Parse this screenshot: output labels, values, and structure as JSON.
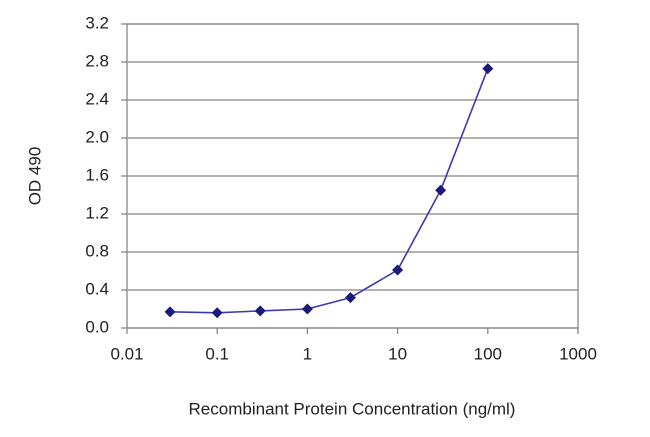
{
  "chart_data": {
    "type": "line",
    "xlabel": "Recombinant Protein Concentration (ng/ml)",
    "ylabel": "OD 490",
    "xscale": "log",
    "x": [
      0.03,
      0.1,
      0.3,
      1,
      3,
      10,
      30,
      100
    ],
    "series": [
      {
        "color": "#3b3bb0",
        "marker_color": "#1a1a7a",
        "values": [
          0.17,
          0.16,
          0.18,
          0.2,
          0.32,
          0.61,
          1.45,
          2.73
        ]
      }
    ],
    "xlim": [
      0.01,
      1000
    ],
    "xticks": [
      0.01,
      0.1,
      1,
      10,
      100,
      1000
    ],
    "ylim": [
      0,
      3.2
    ],
    "yticks": [
      {
        "value": 0,
        "label": "0.0"
      },
      {
        "value": 0.4,
        "label": "0.4"
      },
      {
        "value": 0.8,
        "label": "0.8"
      },
      {
        "value": 1.2,
        "label": "1.2"
      },
      {
        "value": 1.6,
        "label": "1.6"
      },
      {
        "value": 2,
        "label": "2.0"
      },
      {
        "value": 2.4,
        "label": "2.4"
      },
      {
        "value": 2.8,
        "label": "2.8"
      },
      {
        "value": 3.2,
        "label": "3.2"
      }
    ],
    "grid": true
  }
}
